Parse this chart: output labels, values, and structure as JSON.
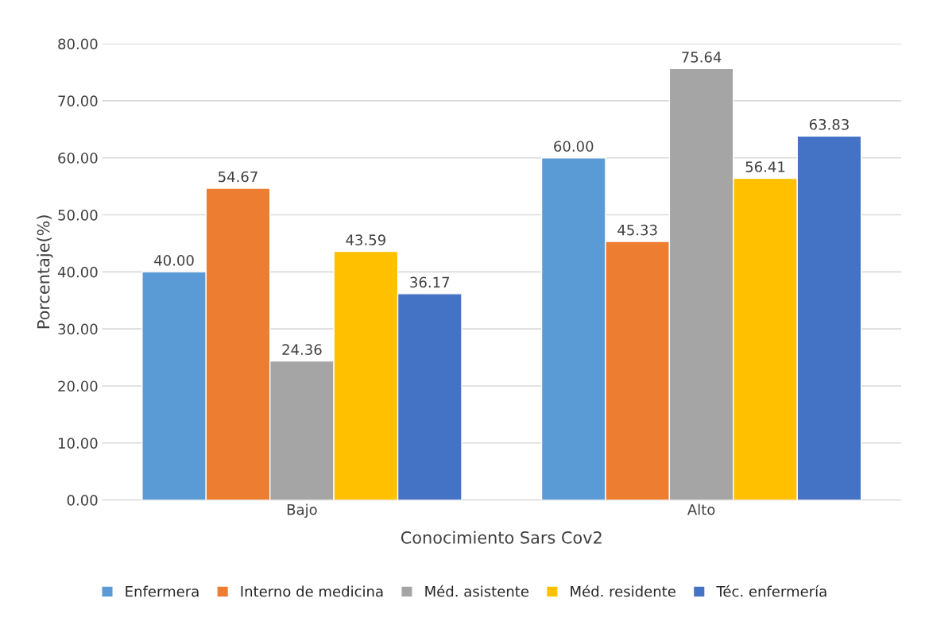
{
  "chart_data": {
    "type": "bar",
    "xlabel": "Conocimiento Sars Cov2",
    "ylabel": "Porcentaje(%)",
    "categories": [
      "Bajo",
      "Alto"
    ],
    "series": [
      {
        "name": "Enfermera",
        "color": "#5b9bd5",
        "values": [
          40.0,
          60.0
        ],
        "value_labels": [
          "40.00",
          "60.00"
        ]
      },
      {
        "name": "Interno de medicina",
        "color": "#ed7d31",
        "values": [
          54.67,
          45.33
        ],
        "value_labels": [
          "54.67",
          "45.33"
        ]
      },
      {
        "name": "Méd. asistente",
        "color": "#a5a5a5",
        "values": [
          24.36,
          75.64
        ],
        "value_labels": [
          "24.36",
          "75.64"
        ]
      },
      {
        "name": "Méd. residente",
        "color": "#ffc000",
        "values": [
          43.59,
          56.41
        ],
        "value_labels": [
          "43.59",
          "56.41"
        ]
      },
      {
        "name": "Téc. enfermería",
        "color": "#4472c4",
        "values": [
          36.17,
          63.83
        ],
        "value_labels": [
          "36.17",
          "63.83"
        ]
      }
    ],
    "ylim": [
      0,
      80
    ],
    "yticks": [
      {
        "value": 0,
        "label": "0.00"
      },
      {
        "value": 10,
        "label": "10.00"
      },
      {
        "value": 20,
        "label": "20.00"
      },
      {
        "value": 30,
        "label": "30.00"
      },
      {
        "value": 40,
        "label": "40.00"
      },
      {
        "value": 50,
        "label": "50.00"
      },
      {
        "value": 60,
        "label": "60.00"
      },
      {
        "value": 70,
        "label": "70.00"
      },
      {
        "value": 80,
        "label": "80.00"
      }
    ],
    "grid": "y",
    "legend": "bottom"
  }
}
